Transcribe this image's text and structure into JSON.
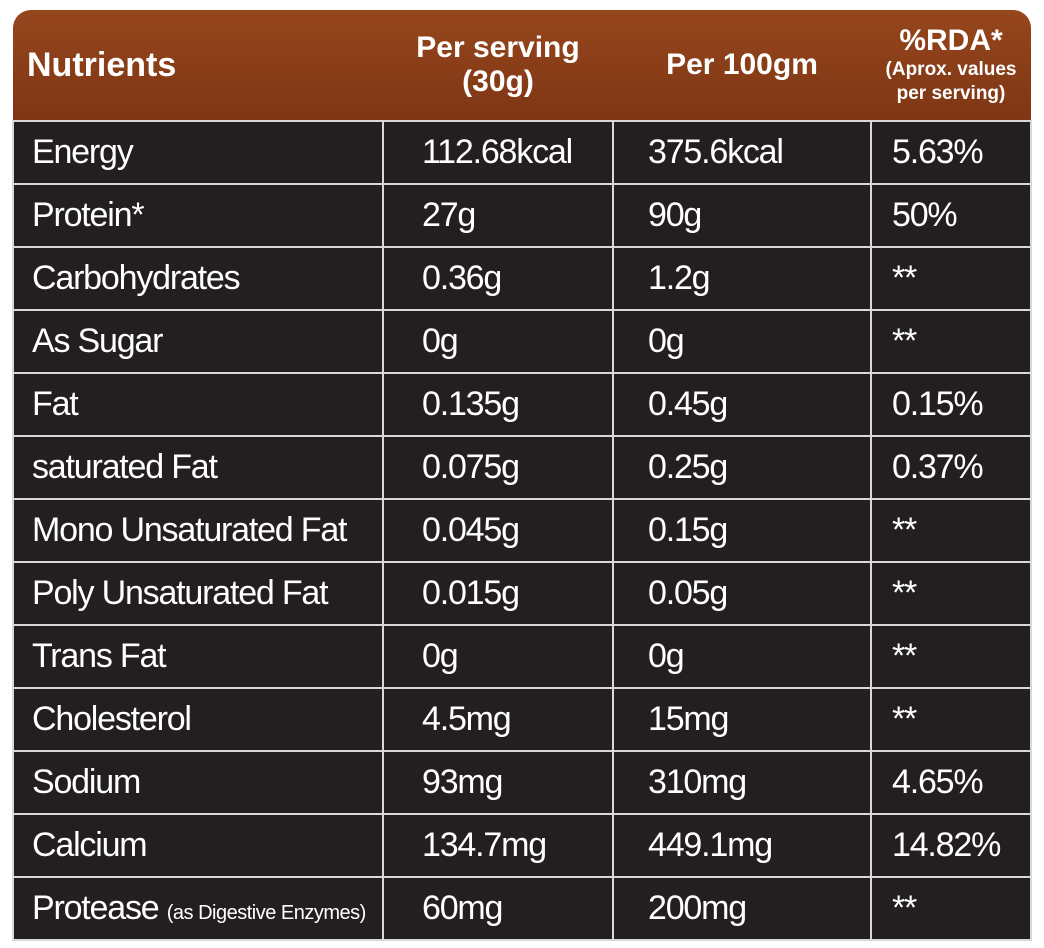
{
  "table": {
    "header": [
      {
        "lines": [
          "Nutrients"
        ]
      },
      {
        "lines": [
          "Per serving",
          "(30g)"
        ]
      },
      {
        "lines": [
          "Per 100gm"
        ]
      },
      {
        "lines": [
          "%RDA*"
        ],
        "notes": [
          "(Aprox. values",
          "per serving)"
        ]
      }
    ],
    "rows": [
      [
        "Energy",
        "112.68kcal",
        "375.6kcal",
        "5.63%"
      ],
      [
        "Protein*",
        "27g",
        "90g",
        "50%"
      ],
      [
        "Carbohydrates",
        "0.36g",
        "1.2g",
        "**"
      ],
      [
        "As Sugar",
        "0g",
        "0g",
        "**"
      ],
      [
        "Fat",
        "0.135g",
        "0.45g",
        "0.15%"
      ],
      [
        "saturated Fat",
        "0.075g",
        "0.25g",
        "0.37%"
      ],
      [
        "Mono Unsaturated Fat",
        "0.045g",
        "0.15g",
        "**"
      ],
      [
        "Poly Unsaturated Fat",
        "0.015g",
        "0.05g",
        "**"
      ],
      [
        "Trans Fat",
        "0g",
        "0g",
        "**"
      ],
      [
        "Cholesterol",
        "4.5mg",
        "15mg",
        "**"
      ],
      [
        "Sodium",
        "93mg",
        "310mg",
        "4.65%"
      ],
      [
        "Calcium",
        "134.7mg",
        "449.1mg",
        "14.82%"
      ],
      [
        {
          "name": "Protease",
          "note": "(as Digestive Enzymes)"
        },
        "60mg",
        "200mg",
        "**"
      ]
    ]
  }
}
